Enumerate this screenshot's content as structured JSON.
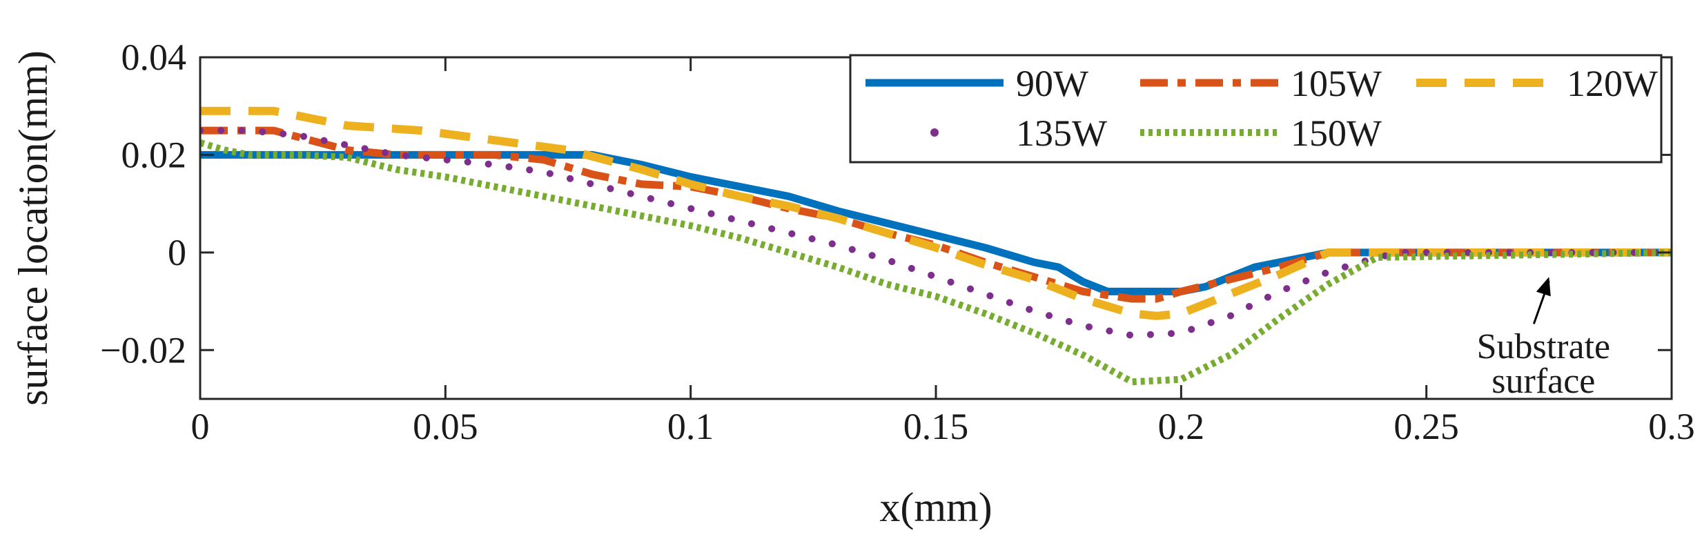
{
  "chart_data": {
    "type": "line",
    "title": "",
    "xlabel": "x(mm)",
    "ylabel": "surface location(mm)",
    "xlim": [
      0,
      0.3
    ],
    "ylim": [
      -0.03,
      0.04
    ],
    "xticks": [
      0,
      0.05,
      0.1,
      0.15,
      0.2,
      0.25,
      0.3
    ],
    "xtick_labels": [
      "0",
      "0.05",
      "0.1",
      "0.15",
      "0.2",
      "0.25",
      "0.3"
    ],
    "yticks": [
      -0.02,
      0,
      0.02,
      0.04
    ],
    "ytick_labels": [
      "−0.02",
      "0",
      "0.02",
      "0.04"
    ],
    "grid": false,
    "legend_position": "top-right",
    "series": [
      {
        "name": "90W",
        "color": "#0072BD",
        "style": "solid",
        "x": [
          0,
          0.01,
          0.02,
          0.03,
          0.04,
          0.05,
          0.06,
          0.07,
          0.08,
          0.09,
          0.1,
          0.11,
          0.12,
          0.13,
          0.14,
          0.15,
          0.16,
          0.17,
          0.175,
          0.18,
          0.185,
          0.19,
          0.2,
          0.205,
          0.21,
          0.215,
          0.22,
          0.23,
          0.24,
          0.25,
          0.3
        ],
        "y": [
          0.02,
          0.02,
          0.02,
          0.02,
          0.02,
          0.02,
          0.02,
          0.02,
          0.02,
          0.018,
          0.0155,
          0.0135,
          0.0115,
          0.0085,
          0.006,
          0.0035,
          0.001,
          -0.002,
          -0.003,
          -0.006,
          -0.008,
          -0.008,
          -0.008,
          -0.007,
          -0.005,
          -0.003,
          -0.002,
          0,
          0,
          0,
          0
        ]
      },
      {
        "name": "105W",
        "color": "#D95319",
        "style": "dash-dot",
        "x": [
          0,
          0.015,
          0.03,
          0.04,
          0.05,
          0.06,
          0.07,
          0.08,
          0.09,
          0.1,
          0.11,
          0.12,
          0.13,
          0.14,
          0.15,
          0.16,
          0.17,
          0.18,
          0.19,
          0.195,
          0.2,
          0.21,
          0.22,
          0.23,
          0.24,
          0.3
        ],
        "y": [
          0.025,
          0.025,
          0.021,
          0.02,
          0.02,
          0.02,
          0.019,
          0.016,
          0.014,
          0.0135,
          0.0115,
          0.009,
          0.007,
          0.004,
          0.0015,
          -0.002,
          -0.005,
          -0.008,
          -0.0095,
          -0.0095,
          -0.008,
          -0.0055,
          -0.003,
          0,
          0,
          0
        ]
      },
      {
        "name": "120W",
        "color": "#EDB120",
        "style": "dash",
        "x": [
          0,
          0.015,
          0.03,
          0.045,
          0.06,
          0.075,
          0.09,
          0.1,
          0.11,
          0.12,
          0.13,
          0.14,
          0.15,
          0.16,
          0.17,
          0.18,
          0.19,
          0.195,
          0.2,
          0.21,
          0.22,
          0.23,
          0.24,
          0.3
        ],
        "y": [
          0.029,
          0.029,
          0.026,
          0.025,
          0.023,
          0.021,
          0.017,
          0.014,
          0.0115,
          0.0095,
          0.007,
          0.004,
          0.001,
          -0.0025,
          -0.0055,
          -0.0095,
          -0.0125,
          -0.013,
          -0.0125,
          -0.0085,
          -0.0045,
          0,
          0,
          0
        ]
      },
      {
        "name": "135W",
        "color": "#7E2F8E",
        "style": "dotted-sparse",
        "x": [
          0,
          0.01,
          0.02,
          0.03,
          0.04,
          0.05,
          0.06,
          0.07,
          0.08,
          0.09,
          0.1,
          0.11,
          0.12,
          0.13,
          0.14,
          0.15,
          0.16,
          0.17,
          0.18,
          0.19,
          0.2,
          0.21,
          0.22,
          0.23,
          0.24,
          0.245,
          0.3
        ],
        "y": [
          0.025,
          0.025,
          0.024,
          0.022,
          0.02,
          0.019,
          0.018,
          0.0165,
          0.014,
          0.0115,
          0.009,
          0.0065,
          0.004,
          0.0015,
          -0.0015,
          -0.005,
          -0.0085,
          -0.012,
          -0.015,
          -0.017,
          -0.0165,
          -0.013,
          -0.008,
          -0.004,
          -0.001,
          0,
          0
        ]
      },
      {
        "name": "150W",
        "color": "#77AC30",
        "style": "dotted",
        "x": [
          0,
          0.005,
          0.01,
          0.02,
          0.03,
          0.04,
          0.05,
          0.06,
          0.07,
          0.08,
          0.09,
          0.1,
          0.11,
          0.12,
          0.13,
          0.14,
          0.15,
          0.16,
          0.17,
          0.18,
          0.19,
          0.2,
          0.21,
          0.22,
          0.23,
          0.24,
          0.3
        ],
        "y": [
          0.0225,
          0.021,
          0.02,
          0.02,
          0.0195,
          0.017,
          0.0155,
          0.0135,
          0.0115,
          0.0095,
          0.0075,
          0.0055,
          0.003,
          0,
          -0.003,
          -0.0065,
          -0.009,
          -0.0125,
          -0.0165,
          -0.021,
          -0.0265,
          -0.026,
          -0.021,
          -0.0135,
          -0.0065,
          -0.001,
          0
        ]
      }
    ],
    "annotation": {
      "lines": [
        "Substrate",
        "surface"
      ],
      "arrow_target": {
        "x": 0.275,
        "y": -0.005
      }
    }
  }
}
